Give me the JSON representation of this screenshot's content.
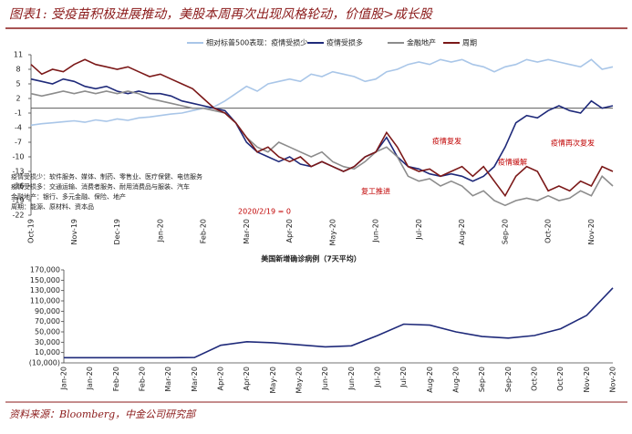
{
  "title": "图表1: 受疫苗积极进展推动，美股本周再次出现风格轮动，价值股>成长股",
  "source": "资料来源：Bloomberg，中金公司研究部",
  "chart_data": [
    {
      "type": "line",
      "categories": [
        "Oct-19",
        null,
        null,
        null,
        "Nov-19",
        null,
        null,
        null,
        "Dec-19",
        null,
        null,
        null,
        "Jan-20",
        null,
        null,
        null,
        "Feb-20",
        null,
        null,
        null,
        "Mar-20",
        null,
        null,
        null,
        "Apr-20",
        null,
        null,
        null,
        "May-20",
        null,
        null,
        null,
        "Jun-20",
        null,
        null,
        null,
        "Jul-20",
        null,
        null,
        null,
        "Aug-20",
        null,
        null,
        null,
        "Sep-20",
        null,
        null,
        null,
        "Oct-20",
        null,
        null,
        null,
        "Nov-20",
        null,
        null
      ],
      "series": [
        {
          "name": "相对标普500表现：疫情受损少",
          "color": "#a9c6e8",
          "values": [
            -3.5,
            -3.2,
            -3.0,
            -2.8,
            -2.6,
            -2.9,
            -2.4,
            -2.7,
            -2.2,
            -2.5,
            -2.0,
            -1.8,
            -1.5,
            -1.2,
            -1.0,
            -0.5,
            0,
            0.3,
            1.5,
            3.0,
            4.5,
            3.5,
            5.0,
            5.5,
            6.0,
            5.5,
            7.0,
            6.5,
            7.5,
            7.0,
            6.5,
            5.5,
            6.0,
            7.5,
            8.0,
            9.0,
            9.5,
            9.0,
            10.0,
            9.5,
            10.0,
            9.0,
            8.5,
            7.5,
            8.5,
            9.0,
            10.0,
            9.5,
            10.0,
            9.5,
            9.0,
            8.5,
            10.0,
            8.0,
            8.5
          ]
        },
        {
          "name": "疫情受损多",
          "color": "#1f2a7a",
          "values": [
            6,
            5.5,
            5,
            6,
            5.5,
            4.5,
            4,
            4.5,
            3.5,
            3,
            3.5,
            3,
            3,
            2.5,
            1.5,
            1,
            0.5,
            0,
            -0.5,
            -3,
            -7,
            -9,
            -10,
            -11,
            -10,
            -11.5,
            -12,
            -11,
            -12,
            -13,
            -12,
            -10,
            -9,
            -6,
            -10,
            -12,
            -12.5,
            -13.5,
            -14,
            -13.5,
            -14,
            -15,
            -14,
            -12,
            -8,
            -3,
            -1.5,
            -2,
            -0.5,
            0.5,
            -0.5,
            -1,
            1.5,
            0,
            0.5
          ]
        },
        {
          "name": "金融地产",
          "color": "#8c8c8c",
          "values": [
            3,
            2.5,
            3,
            3.5,
            3,
            3.5,
            3,
            3.5,
            3,
            3.5,
            3,
            2,
            1.5,
            1,
            0.5,
            0,
            0,
            -0.5,
            -1,
            -3,
            -6,
            -8,
            -9,
            -7,
            -8,
            -9,
            -10,
            -9,
            -11,
            -12,
            -12.5,
            -11,
            -9,
            -8,
            -10,
            -14,
            -15,
            -14.5,
            -16,
            -15,
            -16,
            -18,
            -17,
            -19,
            -20,
            -19,
            -18.5,
            -19,
            -18,
            -19,
            -18.5,
            -17,
            -18,
            -14,
            -16
          ]
        },
        {
          "name": "周期",
          "color": "#7b1818",
          "values": [
            9,
            7,
            8,
            7.5,
            9,
            10,
            9,
            8.5,
            8,
            8.5,
            7.5,
            6.5,
            7,
            6,
            5,
            4,
            2,
            0,
            -1,
            -3,
            -6,
            -9,
            -8,
            -10,
            -11,
            -10,
            -12,
            -11,
            -12,
            -13,
            -12,
            -10,
            -9,
            -5,
            -8,
            -12,
            -13,
            -12.5,
            -14,
            -13,
            -12,
            -14,
            -12,
            -15,
            -18,
            -14,
            -12,
            -13,
            -17,
            -16,
            -17,
            -15,
            -16,
            -12,
            -13
          ]
        }
      ],
      "ylim": [
        -22,
        11
      ],
      "yticks": [
        11,
        8,
        5,
        2,
        -1,
        -4,
        -7,
        -10,
        -13,
        -16,
        -19,
        -22
      ],
      "annotations": [
        "疫情复发",
        "疫情缓解",
        "疫情再次复发",
        "复工推进",
        "2020/2/19 = 0"
      ],
      "notes": [
        "疫情受损少：软件服务、媒体、制药、零售业、医疗保健、电信服务",
        "疫情受损多：交通运输、消费者服务、耐用消费品与服装、汽车",
        "金融地产：银行、多元金融、保险、地产",
        "周期：能源、原材料、资本品"
      ]
    },
    {
      "type": "line",
      "title": "美国新增确诊病例（7天平均）",
      "categories": [
        "Jan-20",
        "Jan-20",
        "Feb-20",
        "Feb-20",
        "Mar-20",
        "Mar-20",
        "Apr-20",
        "Apr-20",
        "May-20",
        "May-20",
        "Jun-20",
        "Jun-20",
        "Jul-20",
        "Jul-20",
        "Aug-20",
        "Aug-20",
        "Sep-20",
        "Sep-20",
        "Oct-20",
        "Oct-20",
        "Nov-20",
        "Nov-20"
      ],
      "series": [
        {
          "name": "美国新增确诊病例",
          "color": "#1f2a7a",
          "values": [
            0,
            0,
            0,
            0,
            0,
            400,
            24000,
            31000,
            29000,
            25000,
            21000,
            23000,
            43000,
            65000,
            63000,
            50000,
            41000,
            38000,
            43000,
            56000,
            82000,
            135000
          ]
        }
      ],
      "ylim": [
        -10000,
        170000
      ],
      "yticks": [
        {
          "value": 170000,
          "label": "170,000"
        },
        {
          "value": 150000,
          "label": "150,000"
        },
        {
          "value": 130000,
          "label": "130,000"
        },
        {
          "value": 110000,
          "label": "110,000"
        },
        {
          "value": 90000,
          "label": "90,000"
        },
        {
          "value": 70000,
          "label": "70,000"
        },
        {
          "value": 50000,
          "label": "50,000"
        },
        {
          "value": 30000,
          "label": "30,000"
        },
        {
          "value": 10000,
          "label": "10,000"
        },
        {
          "value": -10000,
          "label": "(10,000)"
        }
      ]
    }
  ]
}
